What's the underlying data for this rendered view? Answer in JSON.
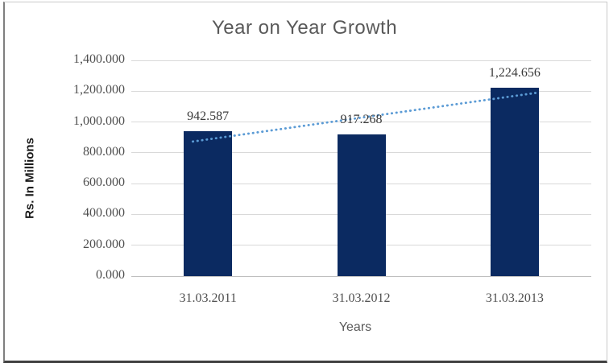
{
  "chart_data": {
    "type": "bar",
    "title": "Year on Year Growth",
    "xlabel": "Years",
    "ylabel": "Rs. In Millions",
    "categories": [
      "31.03.2011",
      "31.03.2012",
      "31.03.2013"
    ],
    "values": [
      942.587,
      917.268,
      1224.656
    ],
    "data_labels": [
      "942.587",
      "917.268",
      "1,224.656"
    ],
    "y_ticks": [
      "0.000",
      "200.000",
      "400.000",
      "600.000",
      "800.000",
      "1,000.000",
      "1,200.000",
      "1,400.000"
    ],
    "y_tick_values": [
      0,
      200,
      400,
      600,
      800,
      1000,
      1200,
      1400
    ],
    "ylim": [
      0,
      1400
    ],
    "grid": "horizontal",
    "legend": "none",
    "trendline": {
      "type": "linear",
      "style": "dotted"
    },
    "colors": {
      "bar": "#0b2a61",
      "trendline": "#5b9bd5",
      "gridline": "#d9d9d9",
      "axis_line": "#bfbfbf",
      "title": "#595959",
      "tick_label": "#4f4f4f",
      "data_label": "#3a3a3a",
      "xlabel_color": "#595959",
      "ylabel_color": "#1a1a1a"
    }
  }
}
